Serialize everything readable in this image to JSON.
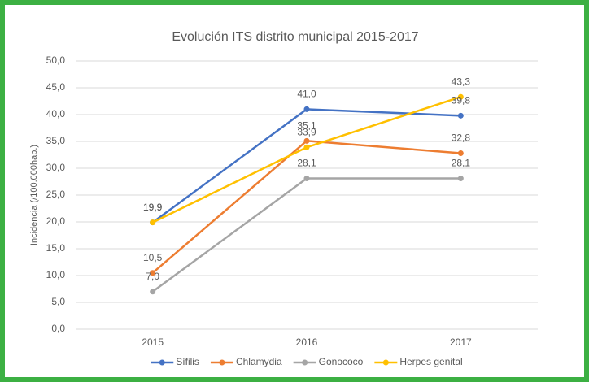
{
  "chart_data": {
    "type": "line",
    "title": "Evolución ITS distrito municipal 2015-2017",
    "y_label": "Incidencia (/100.000hab.)",
    "categories": [
      "2015",
      "2016",
      "2017"
    ],
    "series": [
      {
        "name": "Sífilis",
        "color": "#4472c4",
        "values": [
          19.9,
          41.0,
          39.8
        ],
        "value_labels": [
          "19,9",
          "41,0",
          "39,8"
        ]
      },
      {
        "name": "Chlamydia",
        "color": "#ed7d31",
        "values": [
          10.5,
          35.1,
          32.8
        ],
        "value_labels": [
          "10,5",
          "35,1",
          "32,8"
        ]
      },
      {
        "name": "Gonococo",
        "color": "#a5a5a5",
        "values": [
          7.0,
          28.1,
          28.1
        ],
        "value_labels": [
          "7,0",
          "28,1",
          "28,1"
        ]
      },
      {
        "name": "Herpes genital",
        "color": "#ffc000",
        "values": [
          19.9,
          33.9,
          43.3
        ],
        "value_labels": [
          "19,9",
          "33,9",
          "43,3"
        ]
      }
    ],
    "ylim": [
      0,
      50
    ],
    "yticks": [
      {
        "value": 0,
        "label": "0,0"
      },
      {
        "value": 5,
        "label": "5,0"
      },
      {
        "value": 10,
        "label": "10,0"
      },
      {
        "value": 15,
        "label": "15,0"
      },
      {
        "value": 20,
        "label": "20,0"
      },
      {
        "value": 25,
        "label": "25,0"
      },
      {
        "value": 30,
        "label": "30,0"
      },
      {
        "value": 35,
        "label": "35,0"
      },
      {
        "value": 40,
        "label": "40,0"
      },
      {
        "value": 45,
        "label": "45,0"
      },
      {
        "value": 50,
        "label": "50,0"
      }
    ],
    "grid": true,
    "legend": "bottom"
  }
}
